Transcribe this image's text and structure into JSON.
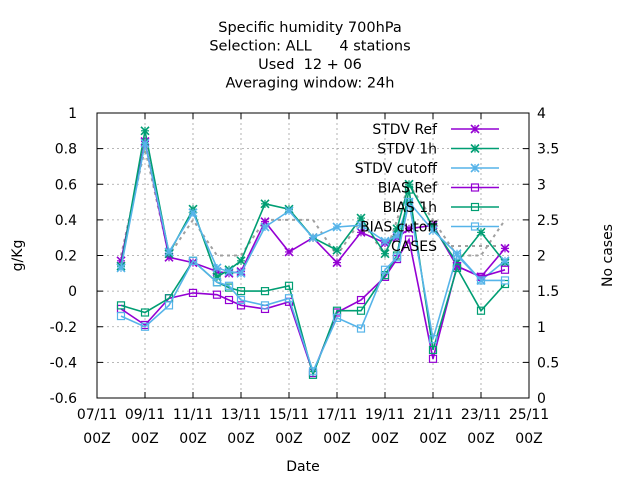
{
  "chart_data": {
    "type": "line",
    "title_lines": [
      "Specific humidity 700hPa",
      "Selection: ALL      4 stations",
      "Used  12 + 06",
      "Averaging window: 24h"
    ],
    "xlabel": "Date",
    "ylabel": "g/Kg",
    "y2label": "No cases",
    "ylim": [
      -0.6,
      1.0
    ],
    "y2lim": [
      0,
      4
    ],
    "y_ticks": [
      "-0.6",
      "-0.4",
      "-0.2",
      "0",
      "0.2",
      "0.4",
      "0.6",
      "0.8",
      "1"
    ],
    "y2_ticks": [
      "0",
      "0.5",
      "1",
      "1.5",
      "2",
      "2.5",
      "3",
      "3.5",
      "4"
    ],
    "x_ticks": [
      {
        "day": 7,
        "label": "07/11",
        "sub": "00Z"
      },
      {
        "day": 9,
        "label": "09/11",
        "sub": "00Z"
      },
      {
        "day": 11,
        "label": "11/11",
        "sub": "00Z"
      },
      {
        "day": 13,
        "label": "13/11",
        "sub": "00Z"
      },
      {
        "day": 15,
        "label": "15/11",
        "sub": "00Z"
      },
      {
        "day": 17,
        "label": "17/11",
        "sub": "00Z"
      },
      {
        "day": 19,
        "label": "19/11",
        "sub": "00Z"
      },
      {
        "day": 21,
        "label": "21/11",
        "sub": "00Z"
      },
      {
        "day": 23,
        "label": "23/11",
        "sub": "00Z"
      },
      {
        "day": 25,
        "label": "25/11",
        "sub": "00Z"
      }
    ],
    "xlim": [
      7,
      25
    ],
    "grid": true,
    "legend_position": "top-right",
    "x": [
      8.0,
      9.0,
      10.0,
      11.0,
      12.0,
      12.5,
      13.0,
      14.0,
      15.0,
      16.0,
      17.0,
      18.0,
      19.0,
      19.5,
      20.0,
      21.0,
      22.0,
      23.0,
      24.0
    ],
    "series": [
      {
        "name": "STDV Ref",
        "color": "#9400d3",
        "marker": "x",
        "values": [
          0.17,
          0.84,
          0.19,
          0.16,
          0.11,
          0.1,
          0.11,
          0.39,
          0.22,
          0.3,
          0.16,
          0.33,
          0.27,
          0.3,
          0.35,
          0.37,
          0.14,
          0.08,
          0.24
        ]
      },
      {
        "name": "STDV 1h",
        "color": "#009e73",
        "marker": "x",
        "values": [
          0.14,
          0.9,
          0.21,
          0.46,
          0.08,
          0.12,
          0.17,
          0.49,
          0.46,
          0.3,
          0.23,
          0.41,
          0.21,
          0.35,
          0.6,
          0.36,
          0.16,
          0.33,
          0.16
        ]
      },
      {
        "name": "STDV cutoff",
        "color": "#56b4e9",
        "marker": "x",
        "values": [
          0.13,
          0.83,
          0.22,
          0.44,
          0.13,
          0.11,
          0.1,
          0.36,
          0.45,
          0.3,
          0.36,
          0.37,
          0.28,
          0.31,
          0.5,
          0.34,
          0.21,
          0.06,
          0.17
        ]
      },
      {
        "name": "BIAS Ref",
        "color": "#9400d3",
        "marker": "square",
        "values": [
          -0.1,
          -0.19,
          -0.04,
          -0.01,
          -0.02,
          -0.05,
          -0.08,
          -0.1,
          -0.06,
          -0.46,
          -0.12,
          -0.05,
          0.08,
          0.18,
          0.29,
          -0.38,
          0.14,
          0.08,
          0.12
        ]
      },
      {
        "name": "BIAS 1h",
        "color": "#009e73",
        "marker": "square",
        "values": [
          -0.08,
          -0.12,
          -0.04,
          0.17,
          0.05,
          0.02,
          0.0,
          0.0,
          0.03,
          -0.47,
          -0.11,
          -0.11,
          0.09,
          0.2,
          0.57,
          -0.33,
          0.13,
          -0.11,
          0.04
        ]
      },
      {
        "name": "BIAS cutoff",
        "color": "#56b4e9",
        "marker": "square",
        "values": [
          -0.14,
          -0.2,
          -0.08,
          0.17,
          0.05,
          0.03,
          -0.05,
          -0.08,
          -0.04,
          -0.45,
          -0.15,
          -0.21,
          0.12,
          0.19,
          0.5,
          -0.27,
          0.2,
          0.06,
          0.06
        ]
      },
      {
        "name": "CASES",
        "color": "#a0a0a0",
        "dash": true,
        "axis": "y2",
        "values": [
          2.0,
          3.5,
          2.0,
          2.5,
          2.0,
          2.0,
          2.0,
          2.5,
          2.5,
          2.5,
          2.0,
          2.5,
          2.0,
          2.5,
          3.0,
          2.5,
          2.0,
          2.0,
          2.5
        ]
      }
    ]
  }
}
